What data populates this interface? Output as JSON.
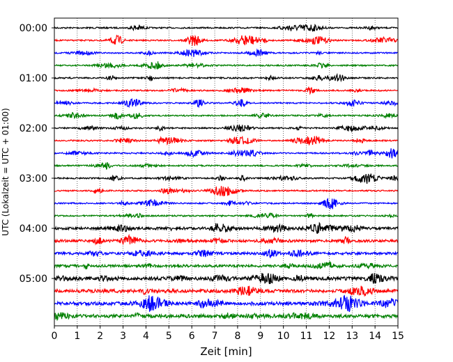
{
  "chart_data": {
    "type": "line",
    "chart_kind": "helicorder seismogram (stacked traces)",
    "title": "",
    "xlabel": "Zeit  [min]",
    "ylabel": "UTC (Lokalzeit = UTC + 01:00)",
    "xlim": [
      0,
      15
    ],
    "x_ticks": [
      0,
      1,
      2,
      3,
      4,
      5,
      6,
      7,
      8,
      9,
      10,
      11,
      12,
      13,
      14,
      15
    ],
    "x_tick_labels": [
      "0",
      "1",
      "2",
      "3",
      "4",
      "5",
      "6",
      "7",
      "8",
      "9",
      "10",
      "11",
      "12",
      "13",
      "14",
      "15"
    ],
    "y_tick_labels": [
      "00:00",
      "01:00",
      "02:00",
      "03:00",
      "04:00",
      "05:00"
    ],
    "vertical_grid": "dotted at each minute",
    "trace_minutes": 15,
    "trace_count": 24,
    "trace_colors": [
      "#000000",
      "#ff0000",
      "#0000ff",
      "#008000"
    ],
    "trace_start_times": [
      "00:00",
      "00:15",
      "00:30",
      "00:45",
      "01:00",
      "01:15",
      "01:30",
      "01:45",
      "02:00",
      "02:15",
      "02:30",
      "02:45",
      "03:00",
      "03:15",
      "03:30",
      "03:45",
      "04:00",
      "04:15",
      "04:30",
      "04:45",
      "05:00",
      "05:15",
      "05:30",
      "05:45"
    ],
    "largest_event": {
      "trace_start": "05:30",
      "x_min": 12.8
    }
  }
}
